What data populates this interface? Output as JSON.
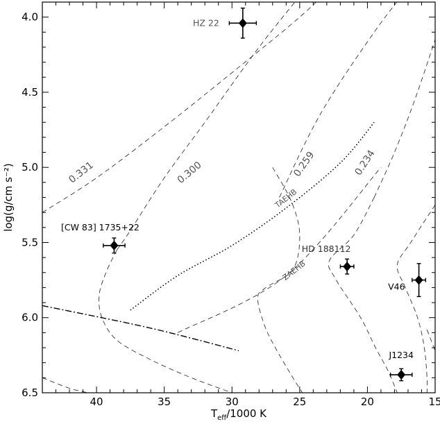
{
  "chart_data": {
    "type": "scatter",
    "xlabel_main": "T",
    "xlabel_sub": "eff",
    "xlabel_rest": "/1000 K",
    "ylabel": "log(g/cm s⁻²)",
    "xlim": [
      44,
      15
    ],
    "ylim": [
      6.5,
      3.9
    ],
    "x_ticks": [
      40,
      35,
      30,
      25,
      20,
      15
    ],
    "y_ticks": [
      "4.0",
      "4.5",
      "5.0",
      "5.5",
      "6.0",
      "6.5"
    ],
    "stars": [
      {
        "name": "HZ 22",
        "teff": 29.2,
        "logg": 4.04,
        "teff_err": 1.0,
        "logg_err": 0.1,
        "label_color": "#555555"
      },
      {
        "name": "[CW 83] 1735+22",
        "teff": 38.7,
        "logg": 5.52,
        "teff_err": 0.8,
        "logg_err": 0.05,
        "label_color": "#000000"
      },
      {
        "name": "HD 188112",
        "teff": 21.5,
        "logg": 5.66,
        "teff_err": 0.5,
        "logg_err": 0.05,
        "label_color": "#333333"
      },
      {
        "name": "V46",
        "teff": 16.2,
        "logg": 5.75,
        "teff_err": 0.5,
        "logg_err": 0.11,
        "label_color": "#000000"
      },
      {
        "name": "J1234",
        "teff": 17.5,
        "logg": 6.38,
        "teff_err": 0.8,
        "logg_err": 0.04,
        "label_color": "#000000"
      }
    ],
    "tracks": [
      {
        "label": "0.331",
        "points": [
          [
            44,
            5.3
          ],
          [
            40,
            5.07
          ],
          [
            35,
            4.73
          ],
          [
            30,
            4.37
          ],
          [
            25,
            4.0
          ],
          [
            21.5,
            3.7
          ]
        ]
      },
      {
        "label": "0.300",
        "points": [
          [
            38.5,
            5.55
          ],
          [
            37.5,
            5.42
          ],
          [
            35,
            5.07
          ],
          [
            32,
            4.7
          ],
          [
            28,
            4.2
          ],
          [
            24,
            3.75
          ]
        ]
      },
      {
        "label": "0.300",
        "points": [
          [
            38.5,
            5.55
          ],
          [
            39.3,
            5.7
          ],
          [
            39.8,
            5.85
          ],
          [
            39.6,
            6.0
          ],
          [
            38.5,
            6.15
          ],
          [
            36,
            6.28
          ],
          [
            33,
            6.4
          ],
          [
            30,
            6.5
          ]
        ]
      },
      {
        "label": "0.259",
        "points": [
          [
            27.0,
            5.0
          ],
          [
            25.6,
            5.23
          ],
          [
            25.0,
            5.45
          ],
          [
            25.5,
            5.68
          ],
          [
            27.5,
            5.8
          ],
          [
            28.1,
            5.87
          ],
          [
            27.6,
            6.05
          ],
          [
            26.8,
            6.2
          ],
          [
            25.5,
            6.4
          ],
          [
            24.8,
            6.5
          ]
        ]
      },
      {
        "label": "0.259",
        "points": [
          [
            26.5,
            5.2
          ],
          [
            23.5,
            4.65
          ],
          [
            19.5,
            4.1
          ],
          [
            16.5,
            3.75
          ]
        ]
      },
      {
        "label": "0.234",
        "points": [
          [
            19.5,
            5.2
          ],
          [
            21.0,
            5.45
          ],
          [
            22.8,
            5.62
          ],
          [
            22.3,
            5.75
          ],
          [
            20.5,
            6.0
          ],
          [
            19.4,
            6.2
          ],
          [
            18.5,
            6.35
          ],
          [
            17.8,
            6.5
          ]
        ]
      },
      {
        "label": "0.234",
        "points": [
          [
            19.5,
            5.2
          ],
          [
            18.0,
            4.9
          ],
          [
            16.5,
            4.55
          ],
          [
            15.0,
            4.15
          ]
        ]
      },
      {
        "label": "",
        "points": [
          [
            15.0,
            5.25
          ],
          [
            16.8,
            5.5
          ],
          [
            17.8,
            5.65
          ],
          [
            17.2,
            5.8
          ],
          [
            16.3,
            6.0
          ],
          [
            15.8,
            6.2
          ],
          [
            15.6,
            6.4
          ],
          [
            15.6,
            6.5
          ]
        ]
      },
      {
        "label": "",
        "points": [
          [
            15.6,
            6.08
          ],
          [
            15.0,
            6.22
          ]
        ]
      },
      {
        "label": "",
        "points": [
          [
            44,
            6.4
          ],
          [
            42,
            6.47
          ],
          [
            40.6,
            6.5
          ]
        ]
      }
    ],
    "taehb": {
      "label": "TAEHB",
      "points": [
        [
          37.5,
          5.95
        ],
        [
          34,
          5.72
        ],
        [
          30,
          5.52
        ],
        [
          26,
          5.27
        ],
        [
          22,
          4.97
        ],
        [
          19.5,
          4.7
        ]
      ]
    },
    "zaehb": {
      "label": "ZAEHB",
      "points": [
        [
          34,
          6.1
        ],
        [
          26,
          5.72
        ],
        [
          19,
          5.0
        ]
      ]
    },
    "hb_end": {
      "points": [
        [
          44,
          5.92
        ],
        [
          36,
          6.07
        ],
        [
          29.5,
          6.22
        ]
      ]
    },
    "track_label_positions": [
      {
        "text": "0.331",
        "teff": 41.0,
        "logg": 5.05,
        "angle": -38
      },
      {
        "text": "0.300",
        "teff": 33.0,
        "logg": 5.05,
        "angle": -40
      },
      {
        "text": "0.259",
        "teff": 24.5,
        "logg": 4.99,
        "angle": -55
      },
      {
        "text": "0.234",
        "teff": 20.0,
        "logg": 4.98,
        "angle": -57
      }
    ]
  }
}
